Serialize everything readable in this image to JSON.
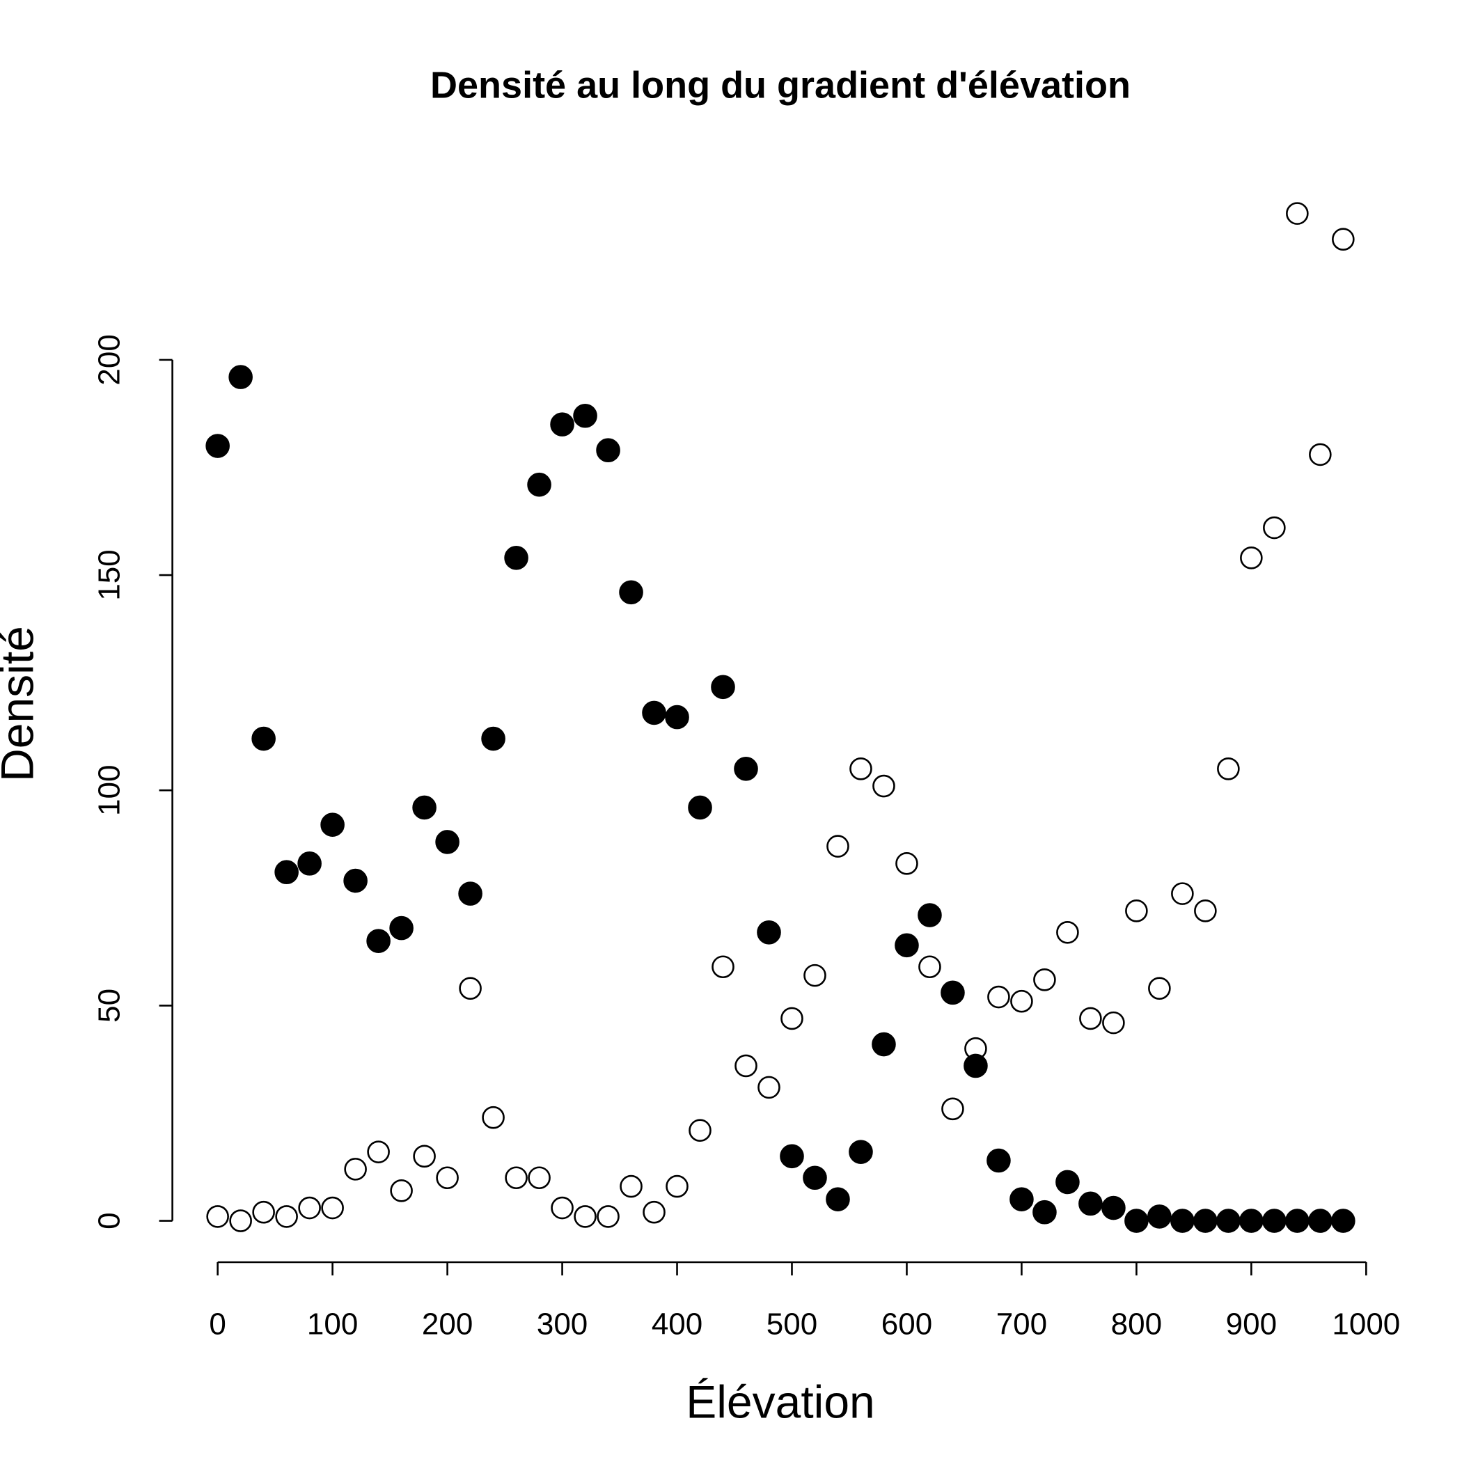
{
  "chart_data": {
    "type": "scatter",
    "title": "Densité au long du gradient d'élévation",
    "x_label": "Élévation",
    "y_label": "Densité",
    "x": [
      0,
      20,
      40,
      60,
      80,
      100,
      120,
      140,
      160,
      180,
      200,
      220,
      240,
      260,
      280,
      300,
      320,
      340,
      360,
      380,
      400,
      420,
      440,
      460,
      480,
      500,
      520,
      540,
      560,
      580,
      600,
      620,
      640,
      660,
      680,
      700,
      720,
      740,
      760,
      780,
      800,
      820,
      840,
      860,
      880,
      900,
      920,
      940,
      960,
      980
    ],
    "series": [
      {
        "color": "#000000",
        "filled": true,
        "values": [
          180,
          196,
          112,
          81,
          83,
          92,
          79,
          65,
          68,
          96,
          88,
          76,
          112,
          154,
          171,
          185,
          187,
          179,
          146,
          118,
          117,
          96,
          124,
          105,
          67,
          15,
          10,
          5,
          16,
          41,
          64,
          71,
          53,
          36,
          14,
          5,
          2,
          9,
          4,
          3,
          0,
          1,
          0,
          0,
          0,
          0,
          0,
          0,
          0,
          0
        ]
      },
      {
        "color": "#000000",
        "filled": false,
        "values": [
          1,
          0,
          2,
          1,
          3,
          3,
          12,
          16,
          7,
          15,
          10,
          54,
          24,
          10,
          10,
          3,
          1,
          1,
          8,
          2,
          8,
          21,
          59,
          36,
          31,
          47,
          57,
          87,
          105,
          101,
          83,
          59,
          26,
          40,
          52,
          51,
          56,
          67,
          47,
          46,
          72,
          54,
          76,
          72,
          105,
          154,
          161,
          234,
          178,
          228
        ]
      }
    ],
    "xlim": [
      -39.2,
      1019.2
    ],
    "ylim": [
      -9.4,
      243.4
    ],
    "xticks": [
      0,
      100,
      200,
      300,
      400,
      500,
      600,
      700,
      800,
      900,
      1000
    ],
    "yticks": [
      0,
      50,
      100,
      150,
      200
    ]
  }
}
